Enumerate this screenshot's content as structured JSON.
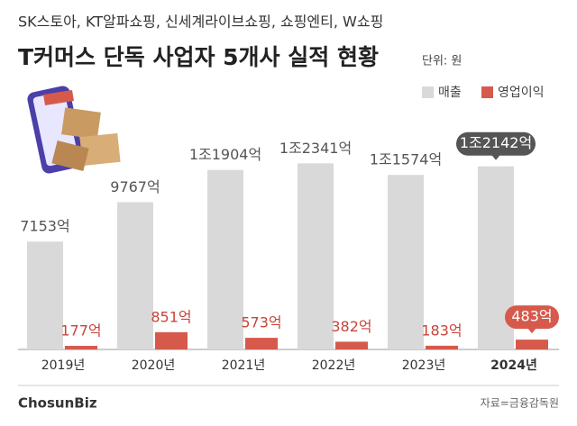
{
  "chart_data": {
    "type": "bar",
    "subtitle": "SK스토아, KT알파쇼핑, 신세계라이브쇼핑, 쇼핑엔티, W쇼핑",
    "title": "T커머스 단독 사업자 5개사 실적 현황",
    "unit": "단위: 원",
    "categories": [
      "2019년",
      "2020년",
      "2021년",
      "2022년",
      "2023년",
      "2024년"
    ],
    "series": [
      {
        "name": "매출",
        "color": "#d9d9d9",
        "values": [
          7153,
          9767,
          11904,
          12341,
          11574,
          12142
        ],
        "value_labels": [
          "7153억",
          "9767억",
          "1조1904억",
          "1조2341억",
          "1조1574억",
          "1조2142억"
        ]
      },
      {
        "name": "영업이익",
        "color": "#d65a4c",
        "axis": "y2",
        "values": [
          177,
          851,
          573,
          382,
          183,
          483
        ],
        "value_labels": [
          "177억",
          "851억",
          "573억",
          "382억",
          "183억",
          "483억"
        ]
      }
    ],
    "ylim": [
      0,
      17500
    ],
    "y2lim": [
      0,
      13000
    ],
    "source": "자료=금융감독원",
    "logo": "ChosunBiz"
  }
}
